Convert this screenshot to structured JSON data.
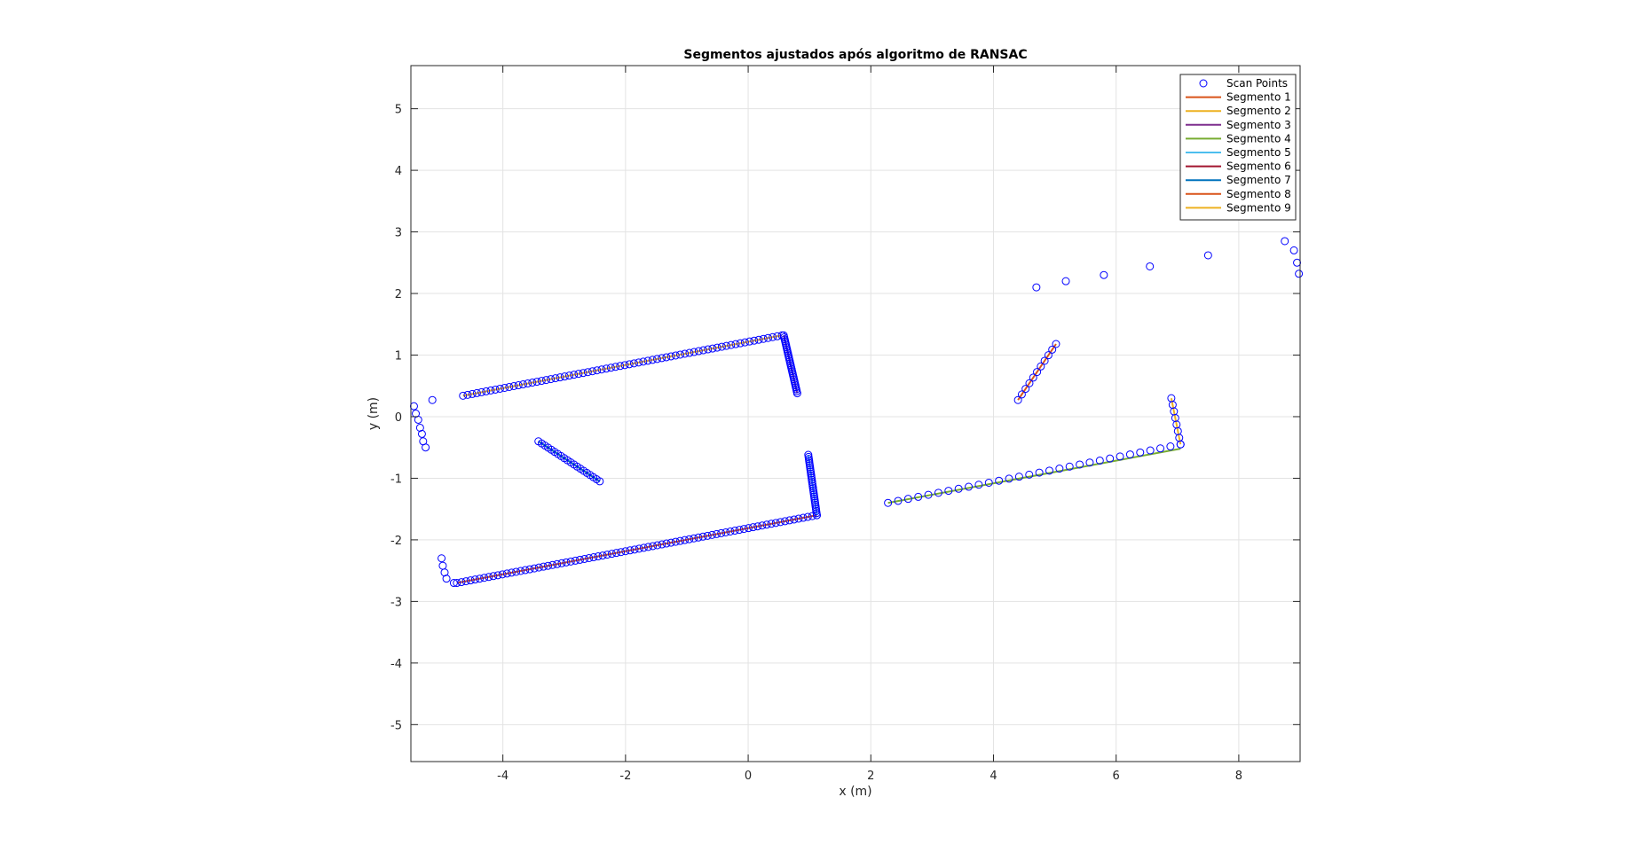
{
  "chart_data": {
    "type": "scatter",
    "title": "Segmentos ajustados após algoritmo de RANSAC",
    "xlabel": "x (m)",
    "ylabel": "y (m)",
    "xlim": [
      -5.5,
      9.0
    ],
    "ylim": [
      -5.6,
      5.7
    ],
    "xticks": [
      -4,
      -2,
      0,
      2,
      4,
      6,
      8
    ],
    "yticks": [
      -5,
      -4,
      -3,
      -2,
      -1,
      0,
      1,
      2,
      3,
      4,
      5
    ],
    "grid": true,
    "legend_position": "top-right",
    "scan_points": {
      "name": "Scan Points",
      "color": "#0000ff",
      "groups": [
        {
          "from": [
            -4.65,
            0.34
          ],
          "to": [
            0.55,
            1.32
          ],
          "count": 70
        },
        {
          "from": [
            0.58,
            1.32
          ],
          "to": [
            0.8,
            0.38
          ],
          "count": 30
        },
        {
          "from": [
            -4.75,
            -2.7
          ],
          "to": [
            1.12,
            -1.6
          ],
          "count": 80
        },
        {
          "from": [
            0.98,
            -0.62
          ],
          "to": [
            1.12,
            -1.6
          ],
          "count": 30
        },
        {
          "from": [
            -3.42,
            -0.4
          ],
          "to": [
            -2.42,
            -1.05
          ],
          "count": 20
        },
        {
          "from": [
            2.28,
            -1.4
          ],
          "to": [
            7.05,
            -0.45
          ],
          "count": 30
        },
        {
          "from": [
            6.9,
            0.3
          ],
          "to": [
            7.05,
            -0.45
          ],
          "count": 8
        },
        {
          "from": [
            4.4,
            0.27
          ],
          "to": [
            5.02,
            1.18
          ],
          "count": 11
        }
      ],
      "extra_points": [
        [
          -5.45,
          0.17
        ],
        [
          -5.42,
          0.05
        ],
        [
          -5.38,
          -0.05
        ],
        [
          -5.35,
          -0.18
        ],
        [
          -5.32,
          -0.28
        ],
        [
          -5.3,
          -0.4
        ],
        [
          -5.26,
          -0.5
        ],
        [
          -5.15,
          0.27
        ],
        [
          -5.0,
          -2.3
        ],
        [
          -4.98,
          -2.42
        ],
        [
          -4.95,
          -2.53
        ],
        [
          -4.92,
          -2.63
        ],
        [
          -4.8,
          -2.7
        ],
        [
          4.7,
          2.1
        ],
        [
          5.18,
          2.2
        ],
        [
          5.8,
          2.3
        ],
        [
          6.55,
          2.44
        ],
        [
          7.5,
          2.62
        ],
        [
          8.75,
          2.85
        ],
        [
          8.9,
          2.7
        ],
        [
          8.95,
          2.5
        ],
        [
          8.98,
          2.32
        ]
      ]
    },
    "series": [
      {
        "name": "Segmento 1",
        "color": "#d95319",
        "x": [
          -4.75,
          1.12
        ],
        "y": [
          -2.7,
          -1.6
        ]
      },
      {
        "name": "Segmento 2",
        "color": "#edb120",
        "x": [
          -4.65,
          0.55
        ],
        "y": [
          0.34,
          1.32
        ]
      },
      {
        "name": "Segmento 3",
        "color": "#7e2f8e",
        "x": [
          0.58,
          0.8
        ],
        "y": [
          1.32,
          0.38
        ]
      },
      {
        "name": "Segmento 4",
        "color": "#77ac30",
        "x": [
          2.28,
          7.05
        ],
        "y": [
          -1.4,
          -0.52
        ]
      },
      {
        "name": "Segmento 5",
        "color": "#4dbeee",
        "x": [
          0.98,
          1.12
        ],
        "y": [
          -0.62,
          -1.6
        ]
      },
      {
        "name": "Segmento 6",
        "color": "#a2142f",
        "x": [
          -3.42,
          -2.42
        ],
        "y": [
          -0.4,
          -1.05
        ]
      },
      {
        "name": "Segmento 7",
        "color": "#0072bd",
        "x": [
          -3.42,
          -2.42
        ],
        "y": [
          -0.4,
          -1.05
        ]
      },
      {
        "name": "Segmento 8",
        "color": "#d95319",
        "x": [
          4.4,
          5.02
        ],
        "y": [
          0.27,
          1.18
        ]
      },
      {
        "name": "Segmento 9",
        "color": "#edb120",
        "x": [
          6.9,
          7.05
        ],
        "y": [
          0.3,
          -0.45
        ]
      }
    ]
  }
}
